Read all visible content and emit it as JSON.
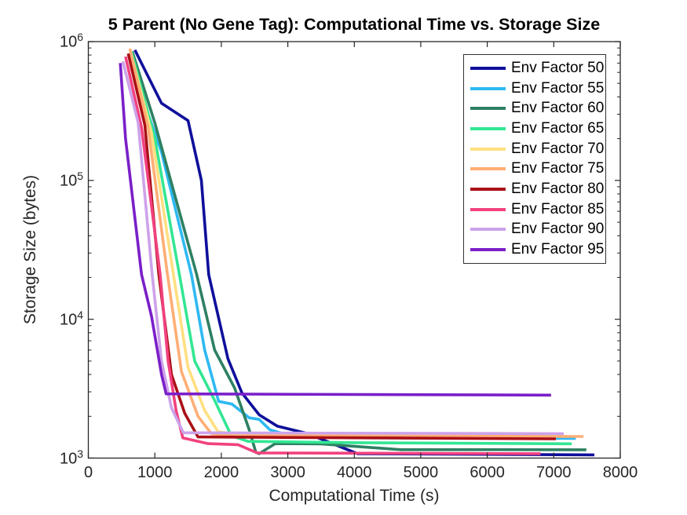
{
  "chart_data": {
    "type": "line",
    "title": "5 Parent (No Gene Tag): Computational Time vs. Storage Size",
    "xlabel": "Computational Time (s)",
    "ylabel": "Storage Size (bytes)",
    "xlim": [
      0,
      8000
    ],
    "ylim": [
      1000,
      1000000
    ],
    "yscale": "log10",
    "xticks": [
      0,
      1000,
      2000,
      3000,
      4000,
      5000,
      6000,
      7000,
      8000
    ],
    "ytick_exponents": [
      3,
      4,
      5,
      6
    ],
    "grid": false,
    "legend_position": "top-right-inside",
    "axis_color": "#262626",
    "background_color": "#ffffff",
    "series": [
      {
        "name": "Env Factor 50",
        "color": "#0F0F9B",
        "points": [
          [
            700,
            870000
          ],
          [
            900,
            560000
          ],
          [
            1100,
            360000
          ],
          [
            1500,
            270000
          ],
          [
            1700,
            100000
          ],
          [
            1810,
            21000
          ],
          [
            2100,
            5200
          ],
          [
            2310,
            2950
          ],
          [
            2570,
            2050
          ],
          [
            2840,
            1700
          ],
          [
            3300,
            1500
          ],
          [
            4050,
            1075
          ],
          [
            7610,
            1055
          ]
        ]
      },
      {
        "name": "Env Factor 55",
        "color": "#2EB9F2",
        "points": [
          [
            640,
            830000
          ],
          [
            900,
            300000
          ],
          [
            1100,
            160000
          ],
          [
            1550,
            21000
          ],
          [
            1750,
            6000
          ],
          [
            1960,
            2560
          ],
          [
            2160,
            2450
          ],
          [
            2420,
            1950
          ],
          [
            2570,
            1900
          ],
          [
            2730,
            1600
          ],
          [
            3000,
            1460
          ],
          [
            4000,
            1400
          ],
          [
            7330,
            1385
          ]
        ]
      },
      {
        "name": "Env Factor 60",
        "color": "#2E8062",
        "points": [
          [
            660,
            850000
          ],
          [
            1000,
            260000
          ],
          [
            1630,
            21000
          ],
          [
            1900,
            6000
          ],
          [
            2200,
            3200
          ],
          [
            2420,
            1600
          ],
          [
            2520,
            1100
          ],
          [
            2570,
            1075
          ],
          [
            2810,
            1270
          ],
          [
            3500,
            1265
          ],
          [
            4700,
            1150
          ],
          [
            7490,
            1148
          ]
        ]
      },
      {
        "name": "Env Factor 65",
        "color": "#33E693",
        "points": [
          [
            650,
            840000
          ],
          [
            1000,
            200000
          ],
          [
            1370,
            21000
          ],
          [
            1600,
            5000
          ],
          [
            1900,
            2600
          ],
          [
            2150,
            1450
          ],
          [
            2400,
            1320
          ],
          [
            4000,
            1290
          ],
          [
            7270,
            1268
          ]
        ]
      },
      {
        "name": "Env Factor 70",
        "color": "#FFDF80",
        "points": [
          [
            630,
            860000
          ],
          [
            950,
            220000
          ],
          [
            1280,
            21000
          ],
          [
            1500,
            4500
          ],
          [
            1750,
            2200
          ],
          [
            1950,
            1550
          ],
          [
            2300,
            1460
          ],
          [
            7200,
            1435
          ]
        ]
      },
      {
        "name": "Env Factor 75",
        "color": "#FFAE75",
        "points": [
          [
            625,
            890000
          ],
          [
            900,
            240000
          ],
          [
            1190,
            21000
          ],
          [
            1400,
            4200
          ],
          [
            1650,
            2000
          ],
          [
            1850,
            1500
          ],
          [
            2200,
            1445
          ],
          [
            7445,
            1430
          ]
        ]
      },
      {
        "name": "Env Factor 80",
        "color": "#AA1016",
        "points": [
          [
            600,
            820000
          ],
          [
            850,
            250000
          ],
          [
            1060,
            21000
          ],
          [
            1250,
            4000
          ],
          [
            1450,
            2100
          ],
          [
            1650,
            1420
          ],
          [
            7030,
            1375
          ]
        ]
      },
      {
        "name": "Env Factor 85",
        "color": "#F2417F",
        "points": [
          [
            560,
            780000
          ],
          [
            800,
            240000
          ],
          [
            1080,
            21000
          ],
          [
            1200,
            5000
          ],
          [
            1320,
            2200
          ],
          [
            1420,
            1400
          ],
          [
            1800,
            1270
          ],
          [
            2250,
            1250
          ],
          [
            2540,
            1090
          ],
          [
            6800,
            1075
          ]
        ]
      },
      {
        "name": "Env Factor 90",
        "color": "#CDA2EA",
        "points": [
          [
            520,
            720000
          ],
          [
            750,
            260000
          ],
          [
            960,
            21000
          ],
          [
            1100,
            5000
          ],
          [
            1250,
            2300
          ],
          [
            1430,
            1520
          ],
          [
            7150,
            1500
          ]
        ]
      },
      {
        "name": "Env Factor 95",
        "color": "#7A1FC9",
        "points": [
          [
            480,
            700000
          ],
          [
            560,
            200000
          ],
          [
            800,
            21000
          ],
          [
            950,
            10500
          ],
          [
            1100,
            4000
          ],
          [
            1170,
            2900
          ],
          [
            6960,
            2840
          ]
        ]
      }
    ]
  }
}
